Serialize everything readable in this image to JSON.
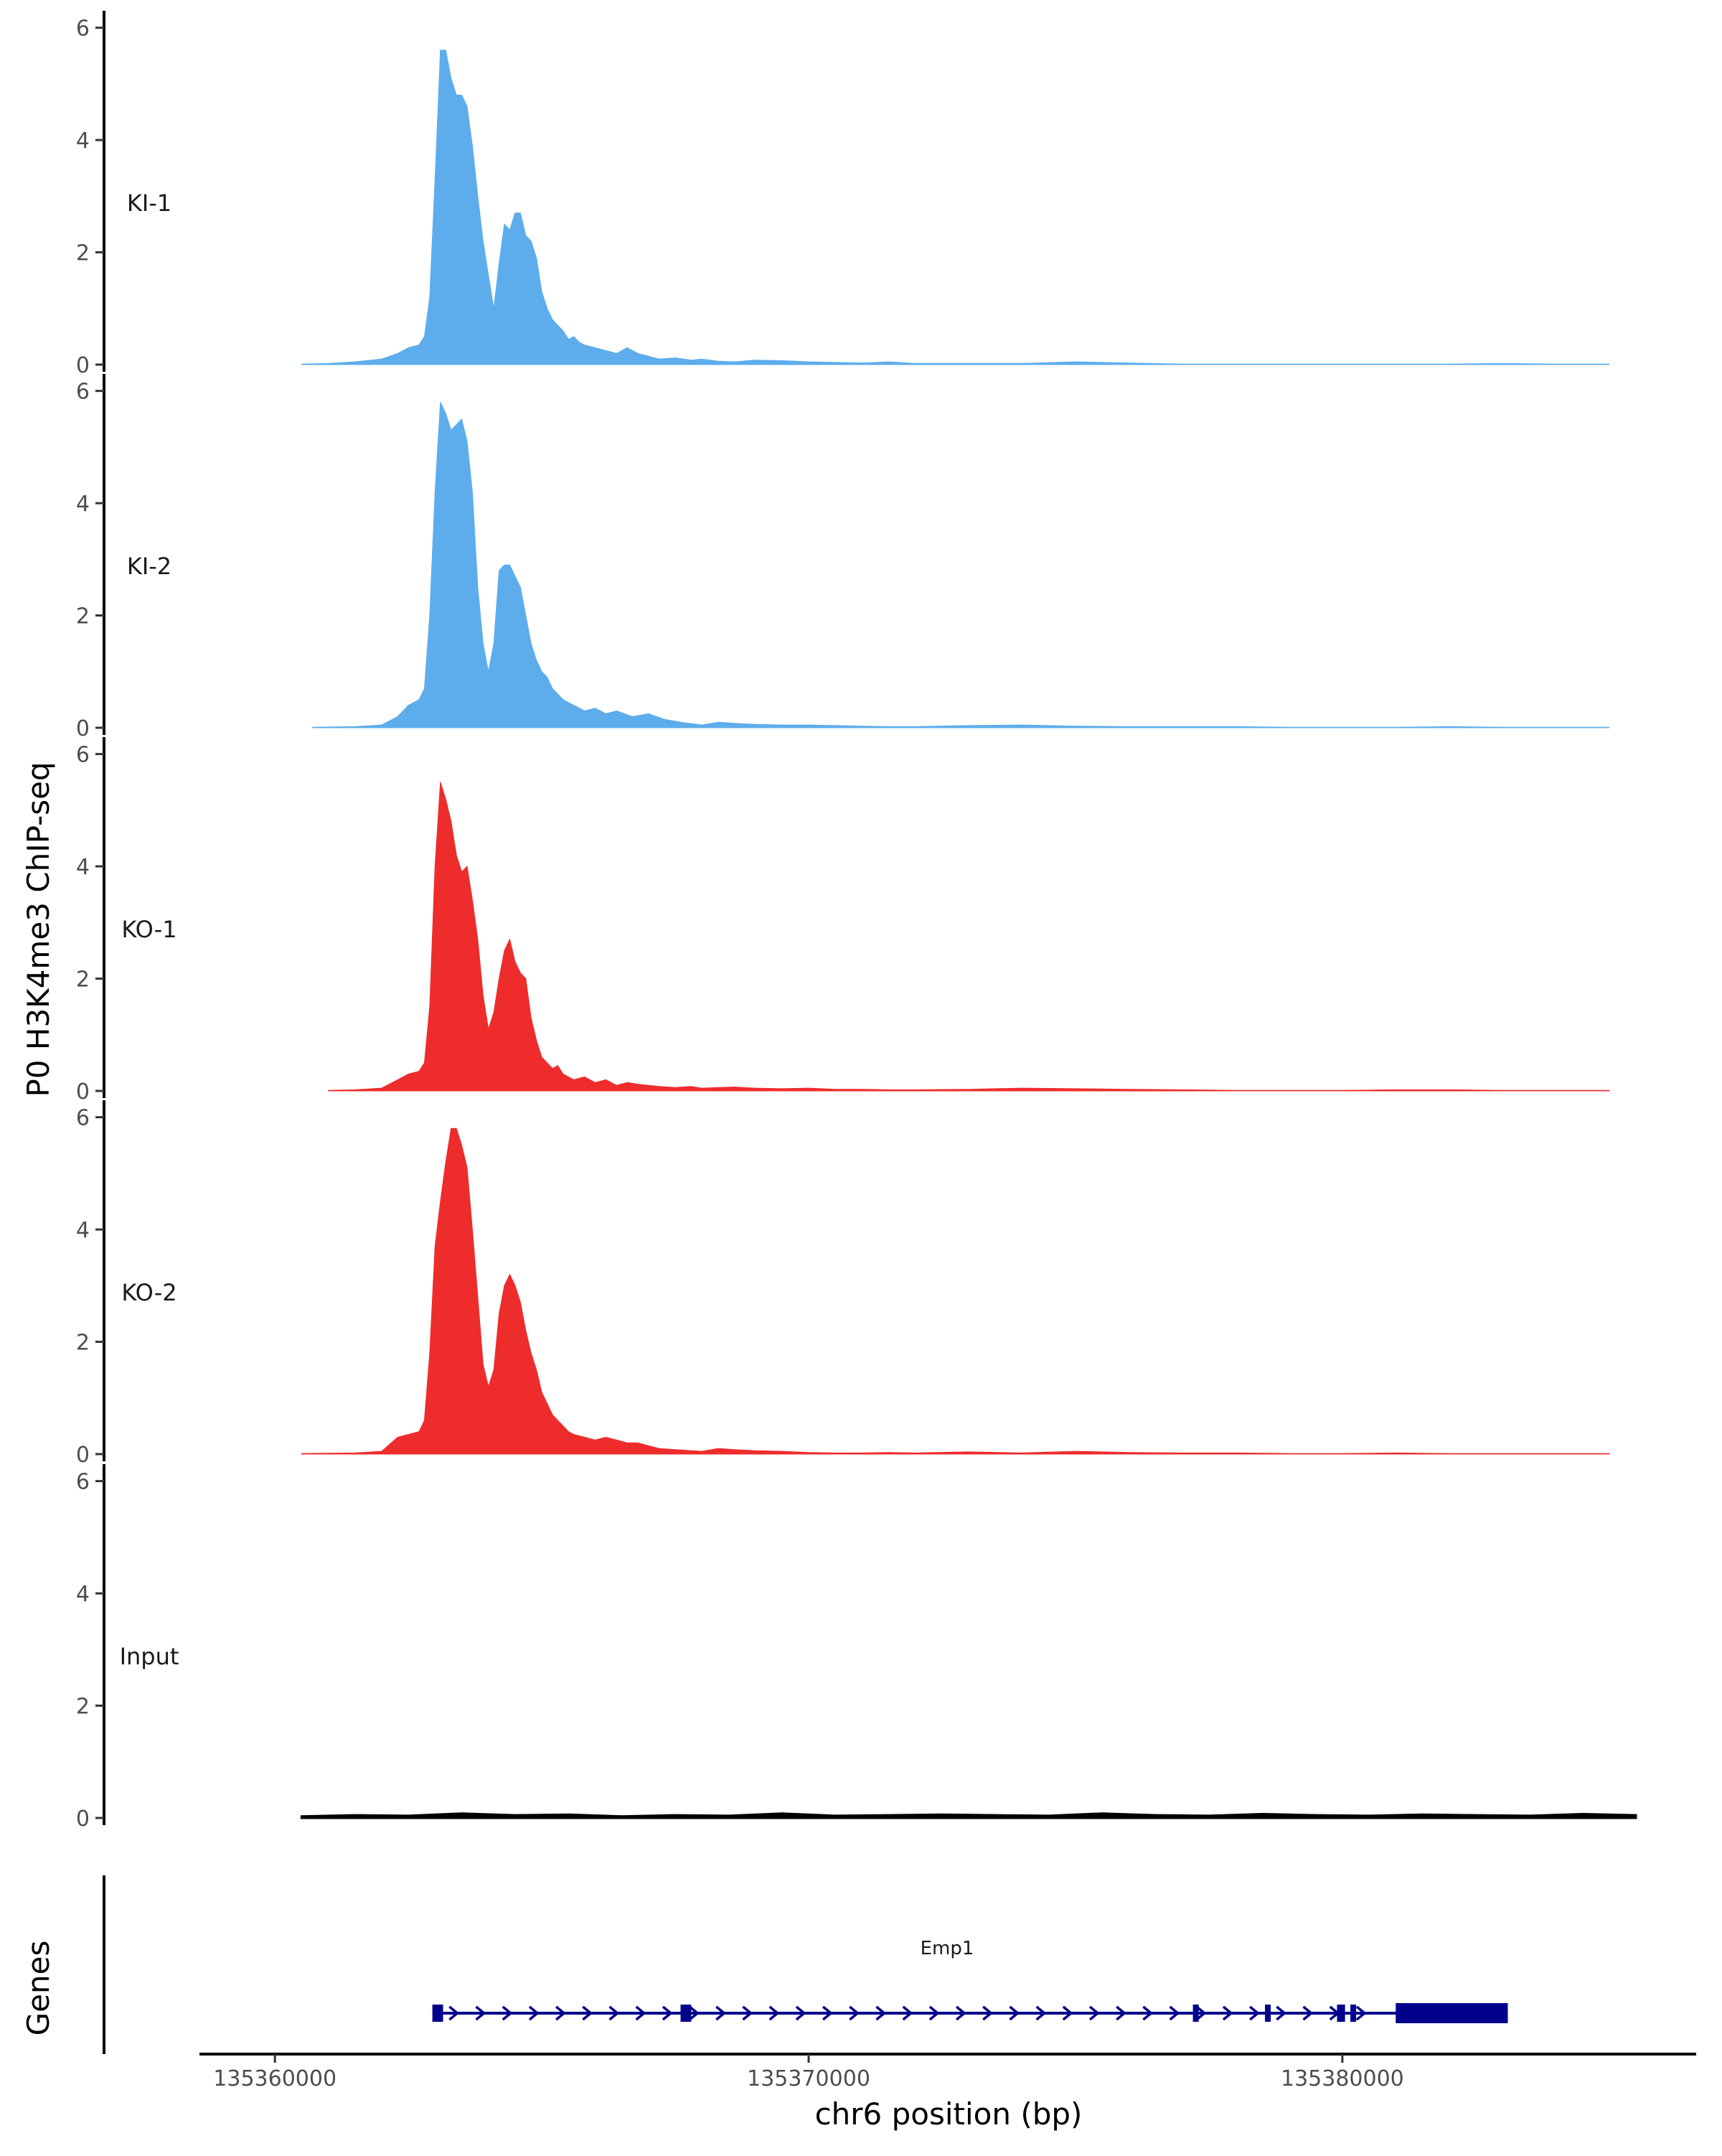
{
  "chart_data": {
    "type": "area",
    "title": "",
    "ylabel": "P0 H3K4me3 ChIP-seq",
    "xlabel": "chr6 position (bp)",
    "xlim": [
      135359500,
      135385500
    ],
    "ylim": [
      0,
      6.2
    ],
    "y_ticks": [
      0,
      2,
      4,
      6
    ],
    "x_ticks": [
      135360000,
      135370000,
      135380000
    ],
    "x_tick_labels": [
      "135360000",
      "135370000",
      "135380000"
    ],
    "colors": {
      "KI": "#5DADEC",
      "KO": "#EE2C2C",
      "Input": "#000000",
      "gene": "#00008B",
      "axis": "#000000"
    },
    "tracks": [
      {
        "name": "KI-1",
        "color": "#5DADEC",
        "x": [
          135360500,
          135361000,
          135361500,
          135362000,
          135362300,
          135362500,
          135362700,
          135362800,
          135362900,
          135363000,
          135363100,
          135363200,
          135363300,
          135363400,
          135363500,
          135363600,
          135363700,
          135363800,
          135363900,
          135364000,
          135364100,
          135364200,
          135364300,
          135364400,
          135364500,
          135364600,
          135364700,
          135364800,
          135364900,
          135365000,
          135365100,
          135365200,
          135365300,
          135365400,
          135365500,
          135365600,
          135365700,
          135365800,
          135366000,
          135366200,
          135366400,
          135366600,
          135366800,
          135367000,
          135367200,
          135367500,
          135367800,
          135368000,
          135368300,
          135368600,
          135369000,
          135369500,
          135370000,
          135370500,
          135371000,
          135371500,
          135372000,
          135373000,
          135374000,
          135375000,
          135376000,
          135377000,
          135378000,
          135379000,
          135380000,
          135381000,
          135382000,
          135383000,
          135384000,
          135385000
        ],
        "values": [
          0.01,
          0.02,
          0.05,
          0.1,
          0.2,
          0.3,
          0.35,
          0.5,
          1.2,
          3.3,
          5.6,
          5.6,
          5.1,
          4.8,
          4.8,
          4.6,
          3.9,
          3.0,
          2.2,
          1.6,
          1.0,
          1.8,
          2.5,
          2.4,
          2.7,
          2.7,
          2.3,
          2.2,
          1.9,
          1.3,
          1.0,
          0.8,
          0.7,
          0.6,
          0.45,
          0.5,
          0.4,
          0.35,
          0.3,
          0.25,
          0.2,
          0.3,
          0.2,
          0.15,
          0.1,
          0.12,
          0.08,
          0.1,
          0.06,
          0.05,
          0.08,
          0.07,
          0.05,
          0.04,
          0.03,
          0.05,
          0.02,
          0.02,
          0.02,
          0.05,
          0.03,
          0.01,
          0.01,
          0.01,
          0.01,
          0.01,
          0.01,
          0.02,
          0.01,
          0.01
        ]
      },
      {
        "name": "KI-2",
        "color": "#5DADEC",
        "x": [
          135360700,
          135361500,
          135362000,
          135362300,
          135362500,
          135362700,
          135362800,
          135362900,
          135363000,
          135363100,
          135363200,
          135363300,
          135363400,
          135363500,
          135363600,
          135363700,
          135363800,
          135363900,
          135364000,
          135364100,
          135364200,
          135364300,
          135364400,
          135364500,
          135364600,
          135364700,
          135364800,
          135364900,
          135365000,
          135365100,
          135365200,
          135365300,
          135365400,
          135365500,
          135365600,
          135365800,
          135366000,
          135366200,
          135366400,
          135366700,
          135367000,
          135367300,
          135367600,
          135368000,
          135368300,
          135368600,
          135369000,
          135369500,
          135370000,
          135370500,
          135371000,
          135371500,
          135372000,
          135373000,
          135374000,
          135375000,
          135376000,
          135377000,
          135378000,
          135379000,
          135380000,
          135381000,
          135382000,
          135383000,
          135384000,
          135385000
        ],
        "values": [
          0.01,
          0.02,
          0.05,
          0.2,
          0.4,
          0.5,
          0.7,
          2.0,
          4.2,
          5.8,
          5.6,
          5.3,
          5.4,
          5.5,
          5.1,
          4.2,
          2.5,
          1.5,
          1.0,
          1.5,
          2.8,
          2.9,
          2.9,
          2.7,
          2.5,
          2.0,
          1.5,
          1.2,
          1.0,
          0.9,
          0.7,
          0.6,
          0.5,
          0.45,
          0.4,
          0.3,
          0.35,
          0.25,
          0.3,
          0.2,
          0.25,
          0.15,
          0.1,
          0.05,
          0.1,
          0.08,
          0.06,
          0.05,
          0.05,
          0.04,
          0.03,
          0.02,
          0.02,
          0.04,
          0.05,
          0.03,
          0.02,
          0.02,
          0.02,
          0.01,
          0.01,
          0.01,
          0.02,
          0.01,
          0.01,
          0.01
        ]
      },
      {
        "name": "KO-1",
        "color": "#EE2C2C",
        "x": [
          135361000,
          135361500,
          135362000,
          135362300,
          135362500,
          135362700,
          135362800,
          135362900,
          135363000,
          135363100,
          135363200,
          135363300,
          135363400,
          135363500,
          135363600,
          135363700,
          135363800,
          135363900,
          135364000,
          135364100,
          135364200,
          135364300,
          135364400,
          135364500,
          135364600,
          135364700,
          135364800,
          135364900,
          135365000,
          135365100,
          135365200,
          135365300,
          135365400,
          135365500,
          135365600,
          135365800,
          135366000,
          135366200,
          135366400,
          135366600,
          135366800,
          135367000,
          135367200,
          135367500,
          135367800,
          135368000,
          135368300,
          135368600,
          135369000,
          135369500,
          135370000,
          135370500,
          135371000,
          135371500,
          135372000,
          135373000,
          135374000,
          135375000,
          135376000,
          135377000,
          135378000,
          135379000,
          135380000,
          135381000,
          135382000,
          135383000,
          135384000,
          135385000
        ],
        "values": [
          0.01,
          0.02,
          0.05,
          0.2,
          0.3,
          0.35,
          0.5,
          1.5,
          4.0,
          5.5,
          5.2,
          4.8,
          4.2,
          3.9,
          4.0,
          3.4,
          2.7,
          1.7,
          1.1,
          1.4,
          2.0,
          2.5,
          2.7,
          2.3,
          2.1,
          2.0,
          1.3,
          0.9,
          0.6,
          0.5,
          0.4,
          0.45,
          0.3,
          0.25,
          0.2,
          0.25,
          0.15,
          0.2,
          0.1,
          0.15,
          0.12,
          0.1,
          0.08,
          0.06,
          0.08,
          0.05,
          0.06,
          0.07,
          0.05,
          0.04,
          0.05,
          0.03,
          0.03,
          0.02,
          0.02,
          0.03,
          0.05,
          0.04,
          0.03,
          0.02,
          0.01,
          0.01,
          0.01,
          0.02,
          0.02,
          0.01,
          0.01,
          0.01
        ]
      },
      {
        "name": "KO-2",
        "color": "#EE2C2C",
        "x": [
          135360500,
          135361500,
          135362000,
          135362300,
          135362500,
          135362700,
          135362800,
          135362900,
          135363000,
          135363100,
          135363200,
          135363300,
          135363400,
          135363500,
          135363600,
          135363700,
          135363800,
          135363900,
          135364000,
          135364100,
          135364200,
          135364300,
          135364400,
          135364500,
          135364600,
          135364700,
          135364800,
          135364900,
          135365000,
          135365100,
          135365200,
          135365300,
          135365400,
          135365500,
          135365600,
          135365800,
          135366000,
          135366200,
          135366400,
          135366600,
          135366800,
          135367000,
          135367200,
          135367500,
          135367800,
          135368000,
          135368300,
          135368600,
          135369000,
          135369500,
          135370000,
          135370500,
          135371000,
          135371500,
          135372000,
          135373000,
          135374000,
          135375000,
          135376000,
          135377000,
          135378000,
          135379000,
          135380000,
          135381000,
          135382000,
          135383000,
          135384000,
          135385000
        ],
        "values": [
          0.01,
          0.02,
          0.05,
          0.3,
          0.35,
          0.4,
          0.6,
          1.8,
          3.7,
          4.5,
          5.2,
          5.8,
          5.8,
          5.5,
          5.1,
          4.0,
          2.8,
          1.6,
          1.2,
          1.5,
          2.5,
          3.0,
          3.2,
          3.0,
          2.7,
          2.2,
          1.8,
          1.5,
          1.1,
          0.9,
          0.7,
          0.6,
          0.5,
          0.4,
          0.35,
          0.3,
          0.25,
          0.3,
          0.25,
          0.2,
          0.2,
          0.15,
          0.1,
          0.08,
          0.06,
          0.05,
          0.1,
          0.08,
          0.06,
          0.05,
          0.03,
          0.02,
          0.02,
          0.03,
          0.02,
          0.04,
          0.02,
          0.05,
          0.03,
          0.02,
          0.02,
          0.01,
          0.01,
          0.02,
          0.01,
          0.01,
          0.01,
          0.01
        ]
      },
      {
        "name": "Input",
        "color": "#000000",
        "x": [
          135360500,
          135361500,
          135362500,
          135363500,
          135364500,
          135365500,
          135366500,
          135367500,
          135368500,
          135369500,
          135370500,
          135371500,
          135372500,
          135373500,
          135374500,
          135375500,
          135376500,
          135377500,
          135378500,
          135379500,
          135380500,
          135381500,
          135382500,
          135383500,
          135384500,
          135385500
        ],
        "values": [
          0.03,
          0.05,
          0.04,
          0.08,
          0.05,
          0.06,
          0.03,
          0.05,
          0.04,
          0.08,
          0.04,
          0.05,
          0.06,
          0.05,
          0.04,
          0.08,
          0.05,
          0.04,
          0.07,
          0.05,
          0.04,
          0.06,
          0.05,
          0.04,
          0.07,
          0.05
        ]
      }
    ],
    "genes": {
      "title": "Genes",
      "label": "Emp1",
      "strand": "+",
      "start": 135362950,
      "end": 135383100,
      "exons": [
        [
          135362950,
          135363150
        ],
        [
          135367600,
          135367800
        ],
        [
          135377200,
          135377300
        ],
        [
          135378550,
          135378650
        ],
        [
          135379900,
          135380050
        ],
        [
          135380150,
          135380250
        ],
        [
          135381000,
          135383100
        ]
      ]
    }
  }
}
